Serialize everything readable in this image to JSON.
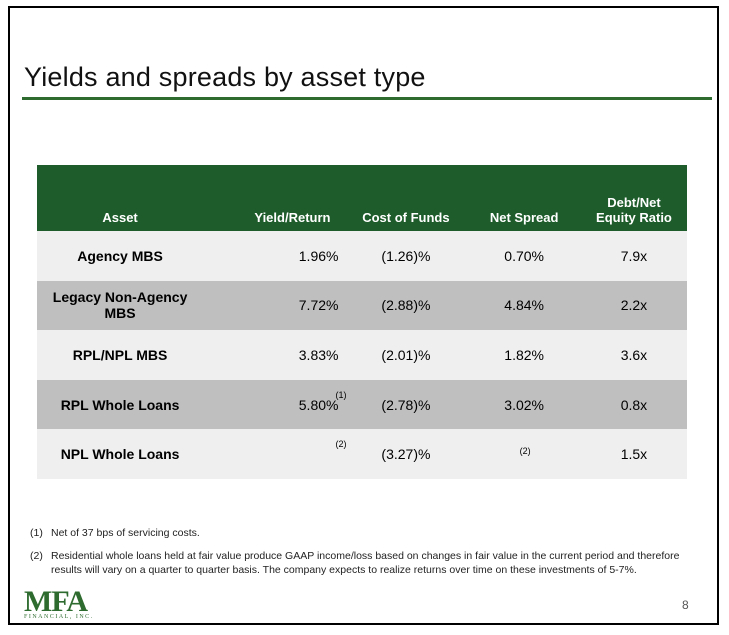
{
  "title": "Yields and spreads by asset type",
  "table": {
    "headers": {
      "asset": "Asset",
      "yield": "Yield/Return",
      "cost": "Cost of Funds",
      "spread": "Net Spread",
      "ratio_line1": "Debt/Net",
      "ratio_line2": "Equity Ratio"
    },
    "rows": [
      {
        "asset": "Agency MBS",
        "yield": "1.96%",
        "yield_note": "",
        "cost": "(1.26)%",
        "spread": "0.70%",
        "spread_note": "",
        "ratio": "7.9x"
      },
      {
        "asset": "Legacy Non-Agency MBS",
        "yield": "7.72%",
        "yield_note": "",
        "cost": "(2.88)%",
        "spread": "4.84%",
        "spread_note": "",
        "ratio": "2.2x"
      },
      {
        "asset": "RPL/NPL MBS",
        "yield": "3.83%",
        "yield_note": "",
        "cost": "(2.01)%",
        "spread": "1.82%",
        "spread_note": "",
        "ratio": "3.6x"
      },
      {
        "asset": "RPL Whole Loans",
        "yield": "5.80%",
        "yield_note": "(1)",
        "cost": "(2.78)%",
        "spread": "3.02%",
        "spread_note": "",
        "ratio": "0.8x"
      },
      {
        "asset": "NPL Whole Loans",
        "yield": "",
        "yield_note": "(2)",
        "cost": "(3.27)%",
        "spread": "",
        "spread_note": "(2)",
        "ratio": "1.5x"
      }
    ]
  },
  "footnotes": [
    {
      "num": "(1)",
      "text": "Net of 37 bps of servicing costs."
    },
    {
      "num": "(2)",
      "text": "Residential whole loans held at fair value produce GAAP income/loss based on changes in fair value in the current period and therefore results will vary on a quarter to quarter basis. The company expects to realize returns over time on these investments of 5-7%."
    }
  ],
  "logo": {
    "mark": "MFA",
    "sub": "FINANCIAL, INC."
  },
  "page_number": "8",
  "colors": {
    "brand_green": "#1e5d2b",
    "row_light": "#efefef",
    "row_dark": "#bfbfbf"
  }
}
